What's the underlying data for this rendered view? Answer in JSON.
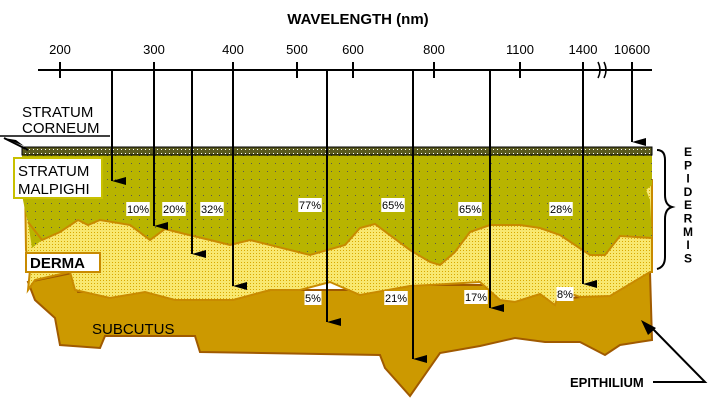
{
  "title": "WAVELENGTH  (nm)",
  "wavelength_ticks": [
    "200",
    "300",
    "400",
    "500",
    "600",
    "800",
    "1100",
    "1400",
    "10600"
  ],
  "layers": {
    "stratum_corneum": [
      "STRATUM",
      "CORNEUM"
    ],
    "stratum_malpighi": [
      "STRATUM",
      "MALPIGHI"
    ],
    "derma": "DERMA",
    "subcutus": "SUBCUTUS",
    "epidermis": [
      "E",
      "P",
      "I",
      "D",
      "E",
      "R",
      "M",
      "I",
      "S"
    ],
    "epithilium": "EPITHILIUM"
  },
  "malpighi_percentages": [
    "10%",
    "20%",
    "32%",
    "77%",
    "65%",
    "65%",
    "28%"
  ],
  "subcutus_percentages": [
    "5%",
    "21%",
    "17%",
    "8%"
  ],
  "colors": {
    "corneum": "#5a5a1e",
    "malpighi": "#b8b400",
    "derma": "#f5e46a",
    "subcutus": "#cc9900",
    "border": "#a05a00"
  }
}
